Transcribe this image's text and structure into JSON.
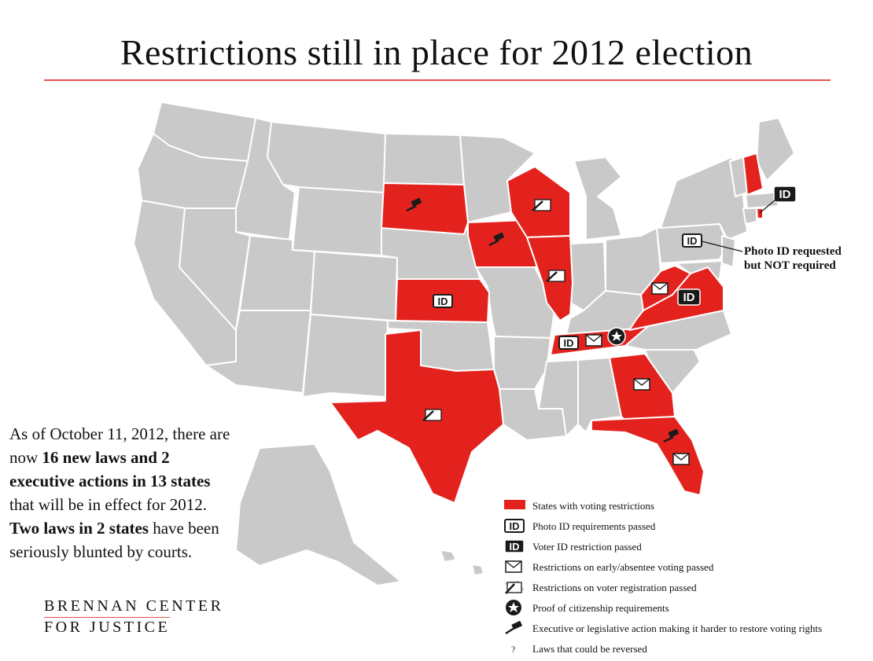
{
  "title": "Restrictions still in place for 2012 election",
  "colors": {
    "restricted": "#e3221d",
    "other": "#c9c9c9",
    "accent_rule": "#e5534b"
  },
  "summary": {
    "p1": "As of October 11, 2012, there are now ",
    "b1": "16 new laws and 2 executive actions in 13 states",
    "p2": " that will be in effect for 2012. ",
    "b2": "Two laws in 2 states",
    "p3": " have been seriously blunted by courts."
  },
  "logo": {
    "line1": "BRENNAN CENTER",
    "line2": "FOR JUSTICE"
  },
  "annotation": {
    "line1": "Photo ID requested",
    "line2": "but NOT required"
  },
  "id_label": "ID",
  "legend": [
    {
      "icon": "red-swatch",
      "label": "States with voting restrictions"
    },
    {
      "icon": "id-white-icon",
      "label": "Photo ID requirements passed"
    },
    {
      "icon": "id-black-icon",
      "label": "Voter ID restriction passed"
    },
    {
      "icon": "envelope-icon",
      "label": "Restrictions on early/absentee voting passed"
    },
    {
      "icon": "registration-form-icon",
      "label": "Restrictions on voter registration passed"
    },
    {
      "icon": "star-badge-icon",
      "label": "Proof of citizenship requirements"
    },
    {
      "icon": "gavel-icon",
      "label": "Executive or legislative action making it harder to restore voting rights"
    },
    {
      "icon": "question-mark-icon",
      "label": "Laws that could be reversed"
    }
  ],
  "restricted_states": [
    "South Dakota",
    "Iowa",
    "Wisconsin",
    "Illinois",
    "Kansas",
    "Texas",
    "Tennessee",
    "West Virginia",
    "Virginia",
    "Georgia",
    "Florida",
    "New Hampshire",
    "Rhode Island"
  ]
}
